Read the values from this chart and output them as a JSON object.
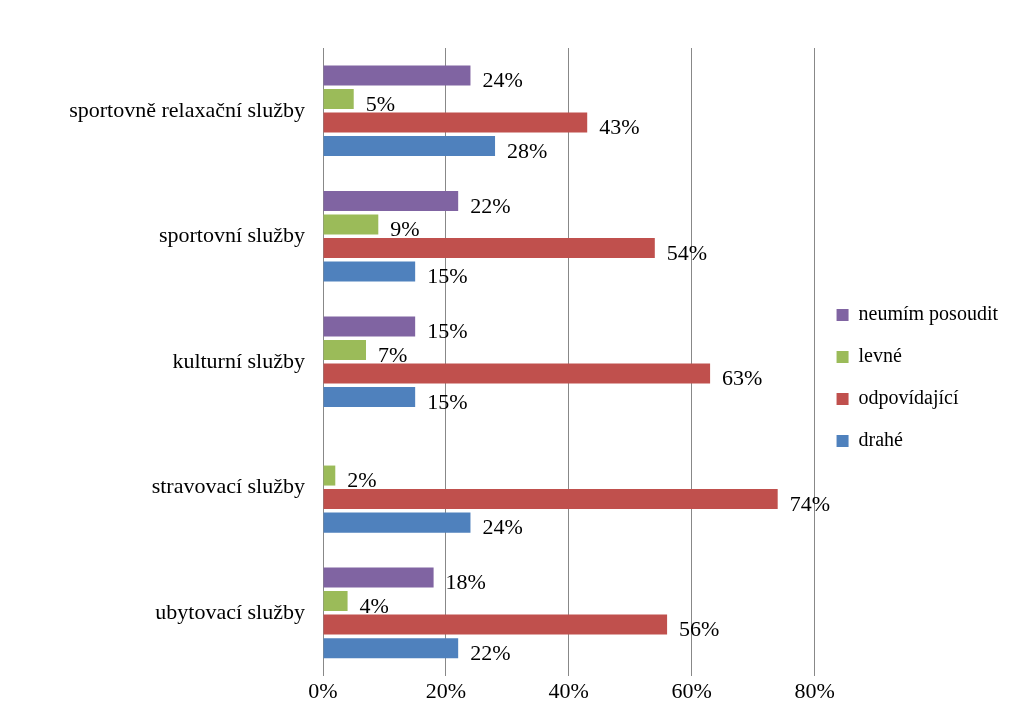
{
  "chart_data": {
    "type": "bar",
    "orientation": "horizontal",
    "categories": [
      "sportovně relaxační služby",
      "sportovní služby",
      "kulturní služby",
      "stravovací služby",
      "ubytovací služby"
    ],
    "series": [
      {
        "name": "neumím posoudit",
        "color": "#8064a2",
        "values": [
          24,
          22,
          15,
          null,
          18
        ],
        "value_labels": [
          "24%",
          "22%",
          "15%",
          null,
          "18%"
        ]
      },
      {
        "name": "levné",
        "color": "#9bbb59",
        "values": [
          5,
          9,
          7,
          2,
          4
        ],
        "value_labels": [
          "5%",
          "9%",
          "7%",
          "2%",
          "4%"
        ]
      },
      {
        "name": "odpovídající",
        "color": "#c0504d",
        "values": [
          43,
          54,
          63,
          74,
          56
        ],
        "value_labels": [
          "43%",
          "54%",
          "63%",
          "74%",
          "56%"
        ]
      },
      {
        "name": "drahé",
        "color": "#4f81bd",
        "values": [
          28,
          15,
          15,
          24,
          22
        ],
        "value_labels": [
          "28%",
          "15%",
          "15%",
          "24%",
          "22%"
        ]
      }
    ],
    "xlim": [
      0,
      80
    ],
    "xticks": [
      {
        "value": 0,
        "label": "0%"
      },
      {
        "value": 20,
        "label": "20%"
      },
      {
        "value": 40,
        "label": "40%"
      },
      {
        "value": 60,
        "label": "60%"
      },
      {
        "value": 80,
        "label": "80%"
      }
    ],
    "grid": "x",
    "legend": "right"
  }
}
